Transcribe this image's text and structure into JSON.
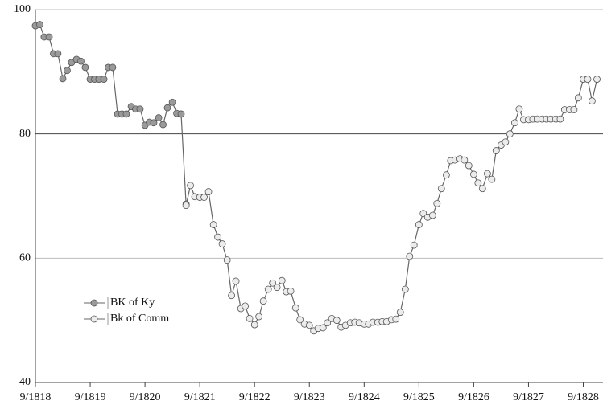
{
  "chart_data": {
    "type": "line",
    "x": [
      1818.67,
      1818.75,
      1818.83,
      1818.92,
      1819,
      1819.08,
      1819.17,
      1819.25,
      1819.33,
      1819.42,
      1819.5,
      1819.58,
      1819.67,
      1819.75,
      1819.83,
      1819.92,
      1820,
      1820.08,
      1820.17,
      1820.25,
      1820.33,
      1820.42,
      1820.5,
      1820.58,
      1820.67,
      1820.75,
      1820.83,
      1820.92,
      1821,
      1821.08,
      1821.17,
      1821.25,
      1821.33,
      1821.42,
      1821.5,
      1821.58,
      1821.67,
      1821.75,
      1821.83,
      1821.92,
      1822,
      1822.08,
      1822.17,
      1822.25,
      1822.33,
      1822.42,
      1822.5,
      1822.58,
      1822.67,
      1822.75,
      1822.83,
      1822.92,
      1823,
      1823.08,
      1823.17,
      1823.25,
      1823.33,
      1823.42,
      1823.5,
      1823.58,
      1823.67,
      1823.75,
      1823.83,
      1823.92,
      1824,
      1824.08,
      1824.17,
      1824.25,
      1824.33,
      1824.42,
      1824.5,
      1824.58,
      1824.67,
      1824.75,
      1824.83,
      1824.92,
      1825,
      1825.08,
      1825.17,
      1825.25,
      1825.33,
      1825.42,
      1825.5,
      1825.58,
      1825.67,
      1825.75,
      1825.83,
      1825.92,
      1826,
      1826.08,
      1826.17,
      1826.25,
      1826.33,
      1826.42,
      1826.5,
      1826.58,
      1826.67,
      1826.75,
      1826.83,
      1826.92,
      1827,
      1827.08,
      1827.17,
      1827.25,
      1827.33,
      1827.42,
      1827.5,
      1827.58,
      1827.67,
      1827.75,
      1827.83,
      1827.92,
      1828,
      1828.08,
      1828.17,
      1828.25,
      1828.33,
      1828.42,
      1828.5,
      1828.58,
      1828.67,
      1828.75,
      1828.83,
      1828.92
    ],
    "series": [
      {
        "name": "BK of Ky",
        "color": "#9a9a9a",
        "values": [
          97.4,
          97.6,
          95.6,
          95.6,
          92.9,
          92.9,
          88.9,
          90.2,
          91.5,
          92.0,
          91.7,
          90.7,
          88.8,
          88.8,
          88.8,
          88.8,
          90.7,
          90.7,
          83.2,
          83.2,
          83.2,
          84.4,
          84.0,
          84.0,
          81.4,
          81.9,
          81.8,
          82.6,
          81.5,
          84.2,
          85.1,
          83.3,
          83.2,
          68.7,
          null,
          null,
          null,
          null,
          null,
          null,
          null,
          null,
          null,
          null,
          null,
          null,
          null,
          null,
          null,
          null,
          null,
          null,
          null,
          null,
          null,
          null,
          null,
          null,
          null,
          null,
          null,
          null,
          null,
          null,
          null,
          null,
          null,
          null,
          null,
          null,
          null,
          null,
          null,
          null,
          null,
          null,
          null,
          null,
          null,
          null,
          null,
          null,
          null,
          null,
          null,
          null,
          null,
          null,
          null,
          null,
          null,
          null,
          null,
          null,
          null,
          null,
          null,
          null,
          null,
          null,
          null,
          null,
          null,
          null,
          null,
          null,
          null,
          null,
          null,
          null,
          null,
          null,
          null,
          null,
          null,
          null,
          null,
          null,
          null,
          null,
          null,
          null,
          null,
          null
        ]
      },
      {
        "name": "Bk of Comm",
        "color": "#ececec",
        "values": [
          null,
          null,
          null,
          null,
          null,
          null,
          null,
          null,
          null,
          null,
          null,
          null,
          null,
          null,
          null,
          null,
          null,
          null,
          null,
          null,
          null,
          null,
          null,
          null,
          null,
          null,
          null,
          null,
          null,
          null,
          null,
          null,
          null,
          68.5,
          71.7,
          69.9,
          69.8,
          69.8,
          70.7,
          65.4,
          63.4,
          62.3,
          59.7,
          54.0,
          56.3,
          51.9,
          52.3,
          50.3,
          49.3,
          50.6,
          53.1,
          55.0,
          56.0,
          55.3,
          56.4,
          54.6,
          54.7,
          52.0,
          50.1,
          49.4,
          49.2,
          48.3,
          48.7,
          48.8,
          49.6,
          50.3,
          50.0,
          48.9,
          49.2,
          49.6,
          49.7,
          49.6,
          49.4,
          49.4,
          49.7,
          49.7,
          49.8,
          49.8,
          50.1,
          50.2,
          51.3,
          55.0,
          60.3,
          62.1,
          65.4,
          67.2,
          66.6,
          66.9,
          68.8,
          71.2,
          73.4,
          75.7,
          75.8,
          76.0,
          75.8,
          74.9,
          73.5,
          72.1,
          71.2,
          73.6,
          72.7,
          77.3,
          78.2,
          78.7,
          80.0,
          81.8,
          84.0,
          82.3,
          82.3,
          82.4,
          82.4,
          82.4,
          82.4,
          82.4,
          82.4,
          82.4,
          83.9,
          83.9,
          83.9,
          85.8,
          88.8,
          88.8,
          85.3,
          88.8
        ]
      }
    ],
    "xlim": [
      1818.67,
      1829.03
    ],
    "xticks": [
      {
        "value": 1818.67,
        "label": "9/1818"
      },
      {
        "value": 1819.67,
        "label": "9/1819"
      },
      {
        "value": 1820.67,
        "label": "9/1820"
      },
      {
        "value": 1821.67,
        "label": "9/1821"
      },
      {
        "value": 1822.67,
        "label": "9/1822"
      },
      {
        "value": 1823.67,
        "label": "9/1823"
      },
      {
        "value": 1824.67,
        "label": "9/1824"
      },
      {
        "value": 1825.67,
        "label": "9/1825"
      },
      {
        "value": 1826.67,
        "label": "9/1826"
      },
      {
        "value": 1827.67,
        "label": "9/1827"
      },
      {
        "value": 1828.67,
        "label": "9/1828"
      }
    ],
    "ylim": [
      40,
      100
    ],
    "yticks": [
      40,
      60,
      80,
      100
    ],
    "grid": true
  }
}
